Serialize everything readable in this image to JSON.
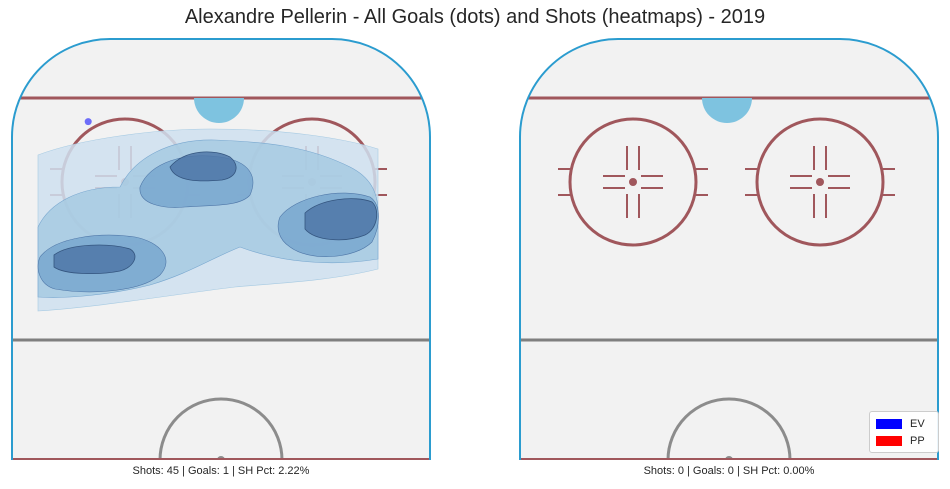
{
  "title": "Alexandre Pellerin - All Goals (dots) and Shots (heatmaps) - 2019",
  "colors": {
    "ice": "#f2f2f2",
    "boards": "#2b9ccf",
    "goal_line": "#a0575c",
    "blue_line": "#7f7f7f",
    "faceoff": "#a0575c",
    "crease": "#7ec3e0",
    "center_circle": "#8c8c8c",
    "heat_levels": [
      "#cfe0f0",
      "#a6cae2",
      "#78a7cf",
      "#4f77a8"
    ],
    "ev": "#0000ff",
    "pp": "#ff0000"
  },
  "legend": {
    "position": "lower-right",
    "items": [
      {
        "label": "EV",
        "color": "#0000ff"
      },
      {
        "label": "PP",
        "color": "#ff0000"
      }
    ]
  },
  "panels": [
    {
      "id": "left",
      "caption": "Shots: 45 | Goals: 1 | SH Pct: 2.22%"
    },
    {
      "id": "right",
      "caption": "Shots: 0 | Goals: 0 | SH Pct: 0.00%"
    }
  ],
  "chart_data": [
    {
      "type": "heatmap",
      "title": "Alexandre Pellerin - All Goals (dots) and Shots (heatmaps) - 2019",
      "panel": "left",
      "xlim": [
        -42.5,
        42.5
      ],
      "ylim": [
        0,
        100
      ],
      "grid": false,
      "shots": 45,
      "goals": 1,
      "sh_pct": 2.22,
      "heat_levels": 4,
      "goal_points": [
        {
          "x": -27.0,
          "y": 80.0,
          "strength": "EV"
        }
      ]
    },
    {
      "type": "heatmap",
      "panel": "right",
      "xlim": [
        -42.5,
        42.5
      ],
      "ylim": [
        0,
        100
      ],
      "grid": false,
      "shots": 0,
      "goals": 0,
      "sh_pct": 0.0,
      "goal_points": []
    }
  ]
}
